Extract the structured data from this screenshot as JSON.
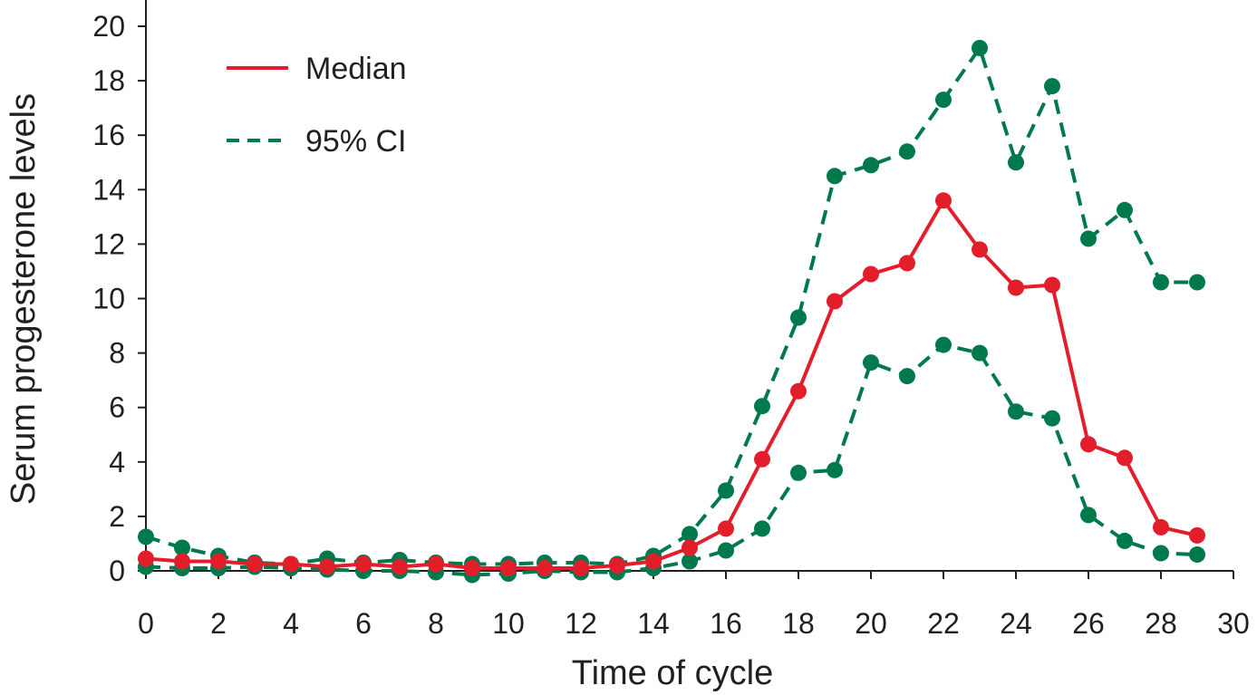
{
  "chart_data": {
    "type": "line",
    "xlabel": "Time of cycle",
    "ylabel": "Serum progesterone levels",
    "xlim": [
      0,
      30
    ],
    "ylim": [
      0,
      20
    ],
    "xticks": [
      0,
      2,
      4,
      6,
      8,
      10,
      12,
      14,
      16,
      18,
      20,
      22,
      24,
      26,
      28,
      30
    ],
    "yticks": [
      0,
      2,
      4,
      6,
      8,
      10,
      12,
      14,
      16,
      18,
      20
    ],
    "grid": false,
    "legend_position": "top-left",
    "x": [
      0,
      1,
      2,
      3,
      4,
      5,
      6,
      7,
      8,
      9,
      10,
      11,
      12,
      13,
      14,
      15,
      16,
      17,
      18,
      19,
      20,
      21,
      22,
      23,
      24,
      25,
      26,
      27,
      28,
      29
    ],
    "series": [
      {
        "name": "Median",
        "role": "median",
        "color": "#e31e2b",
        "dash": "solid",
        "show_in_legend": true,
        "values": [
          0.45,
          0.35,
          0.35,
          0.25,
          0.25,
          0.15,
          0.25,
          0.15,
          0.25,
          0.1,
          0.1,
          0.1,
          0.1,
          0.2,
          0.35,
          0.85,
          1.55,
          4.1,
          6.6,
          9.9,
          10.9,
          11.3,
          13.6,
          11.8,
          10.4,
          10.5,
          4.65,
          4.15,
          1.6,
          1.3
        ]
      },
      {
        "name": "95% CI",
        "role": "upper",
        "color": "#007a4d",
        "dash": "dashed",
        "show_in_legend": true,
        "values": [
          1.25,
          0.85,
          0.55,
          0.3,
          0.25,
          0.45,
          0.3,
          0.4,
          0.3,
          0.25,
          0.25,
          0.3,
          0.3,
          0.25,
          0.55,
          1.35,
          2.95,
          6.05,
          9.3,
          14.5,
          14.9,
          15.4,
          17.3,
          19.2,
          15.0,
          17.8,
          12.2,
          13.25,
          10.6,
          10.6
        ]
      },
      {
        "name": "95% CI",
        "role": "lower",
        "color": "#007a4d",
        "dash": "dashed",
        "show_in_legend": false,
        "values": [
          0.15,
          0.1,
          0.1,
          0.15,
          0.1,
          0.05,
          0.0,
          0.0,
          -0.05,
          -0.15,
          -0.1,
          0.0,
          -0.05,
          -0.05,
          0.1,
          0.35,
          0.75,
          1.55,
          3.6,
          3.7,
          7.65,
          7.15,
          8.3,
          8.0,
          5.85,
          5.6,
          2.05,
          1.1,
          0.65,
          0.6
        ]
      }
    ]
  }
}
